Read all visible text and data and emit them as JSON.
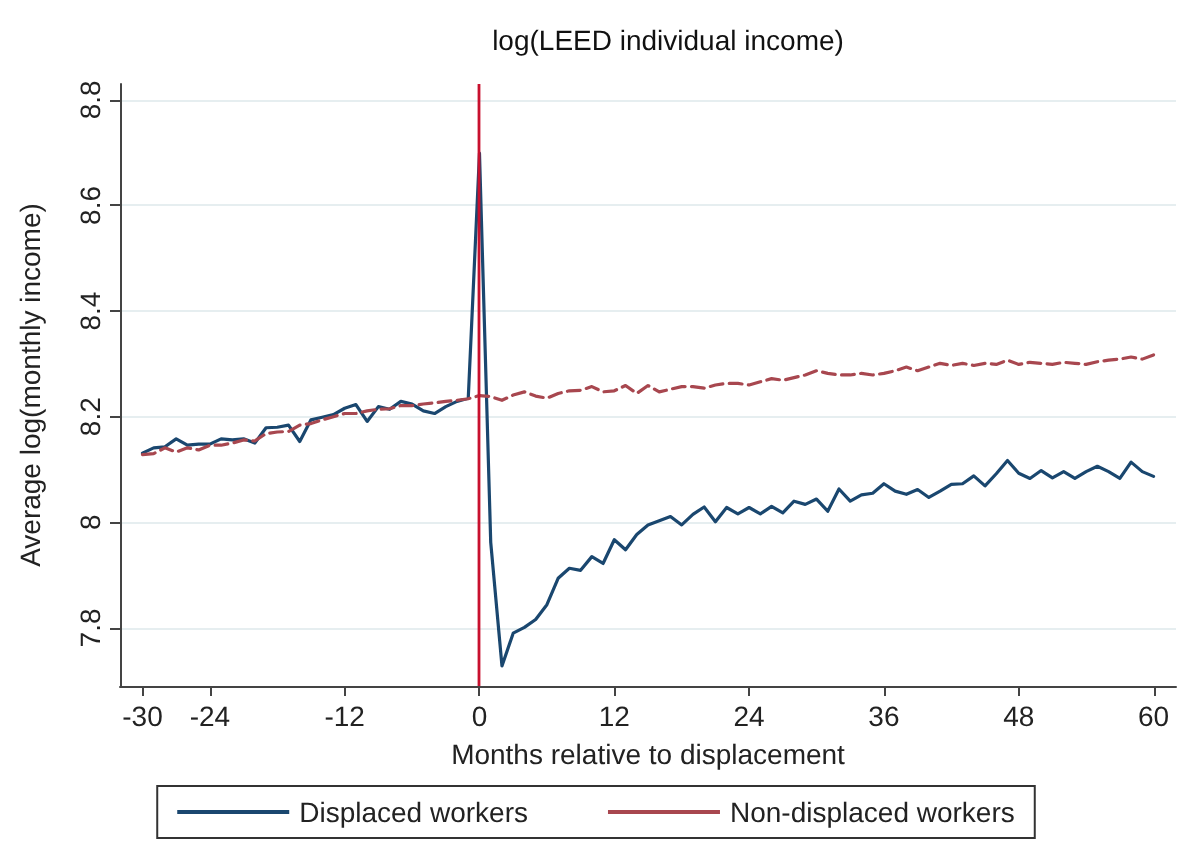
{
  "chart_data": {
    "type": "line",
    "title": "log(LEED individual income)",
    "xlabel": "Months relative to displacement",
    "ylabel": "Average log(monthly income)",
    "x": [
      -30,
      -29,
      -28,
      -27,
      -26,
      -25,
      -24,
      -23,
      -22,
      -21,
      -20,
      -19,
      -18,
      -17,
      -16,
      -15,
      -14,
      -13,
      -12,
      -11,
      -10,
      -9,
      -8,
      -7,
      -6,
      -5,
      -4,
      -3,
      -2,
      -1,
      0,
      1,
      2,
      3,
      4,
      5,
      6,
      7,
      8,
      9,
      10,
      11,
      12,
      13,
      14,
      15,
      16,
      17,
      18,
      19,
      20,
      21,
      22,
      23,
      24,
      25,
      26,
      27,
      28,
      29,
      30,
      31,
      32,
      33,
      34,
      35,
      36,
      37,
      38,
      39,
      40,
      41,
      42,
      43,
      44,
      45,
      46,
      47,
      48,
      49,
      50,
      51,
      52,
      53,
      54,
      55,
      56,
      57,
      58,
      59,
      60
    ],
    "series": [
      {
        "name": "Displaced workers",
        "color": "#1a476f",
        "line_style": "solid",
        "values": [
          8.131,
          8.141,
          8.143,
          8.158,
          8.146,
          8.148,
          8.148,
          8.158,
          8.156,
          8.158,
          8.15,
          8.179,
          8.18,
          8.184,
          8.153,
          8.194,
          8.199,
          8.204,
          8.216,
          8.223,
          8.191,
          8.219,
          8.214,
          8.229,
          8.224,
          8.211,
          8.206,
          8.219,
          8.229,
          8.235,
          8.699,
          7.962,
          7.728,
          7.79,
          7.801,
          7.816,
          7.844,
          7.894,
          7.913,
          7.909,
          7.935,
          7.922,
          7.967,
          7.948,
          7.977,
          7.995,
          8.003,
          8.011,
          7.995,
          8.015,
          8.029,
          8.001,
          8.028,
          8.016,
          8.028,
          8.016,
          8.03,
          8.018,
          8.04,
          8.034,
          8.044,
          8.021,
          8.063,
          8.04,
          8.052,
          8.055,
          8.073,
          8.059,
          8.053,
          8.062,
          8.047,
          8.059,
          8.072,
          8.073,
          8.088,
          8.069,
          8.092,
          8.117,
          8.093,
          8.083,
          8.098,
          8.084,
          8.096,
          8.083,
          8.096,
          8.106,
          8.096,
          8.083,
          8.114,
          8.096,
          8.087
        ]
      },
      {
        "name": "Non-displaced workers",
        "color": "#a8474f",
        "line_style": "dashed",
        "values": [
          8.128,
          8.13,
          8.141,
          8.133,
          8.141,
          8.137,
          8.146,
          8.146,
          8.15,
          8.156,
          8.154,
          8.168,
          8.171,
          8.172,
          8.184,
          8.187,
          8.194,
          8.2,
          8.206,
          8.206,
          8.211,
          8.214,
          8.215,
          8.221,
          8.221,
          8.224,
          8.226,
          8.229,
          8.231,
          8.234,
          8.24,
          8.238,
          8.231,
          8.241,
          8.247,
          8.239,
          8.235,
          8.244,
          8.249,
          8.25,
          8.257,
          8.247,
          8.249,
          8.259,
          8.244,
          8.259,
          8.247,
          8.252,
          8.257,
          8.257,
          8.254,
          8.26,
          8.263,
          8.263,
          8.26,
          8.266,
          8.272,
          8.269,
          8.274,
          8.279,
          8.287,
          8.282,
          8.279,
          8.279,
          8.282,
          8.279,
          8.282,
          8.287,
          8.294,
          8.287,
          8.294,
          8.301,
          8.297,
          8.301,
          8.297,
          8.301,
          8.299,
          8.307,
          8.299,
          8.303,
          8.301,
          8.299,
          8.303,
          8.301,
          8.299,
          8.304,
          8.307,
          8.309,
          8.313,
          8.309,
          8.317
        ]
      }
    ],
    "xlim": [
      -32,
      62
    ],
    "xticks": [
      -30,
      -24,
      -12,
      0,
      12,
      24,
      36,
      48,
      60
    ],
    "ylim": [
      7.69,
      8.83
    ],
    "yticks": [
      7.8,
      8,
      8.2,
      8.4,
      8.6,
      8.8
    ],
    "ref_lines": [
      {
        "axis": "x",
        "value": 0,
        "color": "#c8102e"
      }
    ],
    "grid": "y",
    "legend": "bottom",
    "marker": "none"
  }
}
